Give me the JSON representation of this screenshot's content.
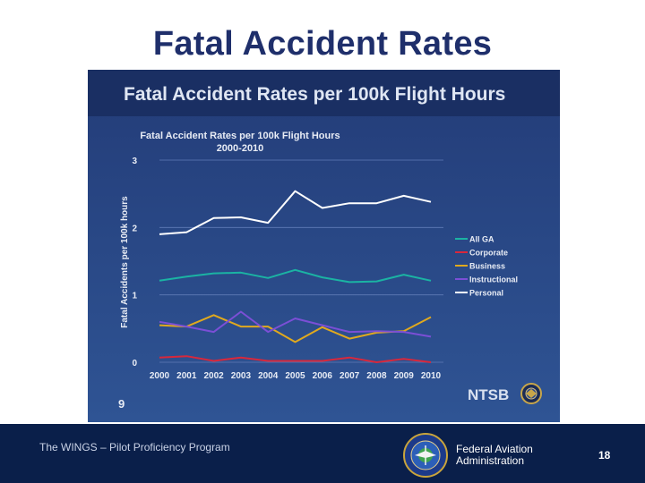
{
  "slide": {
    "title": "Fatal Accident Rates",
    "banner_title": "Fatal Accident Rates per 100k Flight Hours",
    "panel_slide_number": "9",
    "ntsb_label": "NTSB"
  },
  "footer": {
    "program": "The WINGS – Pilot Proficiency Program",
    "agency_line1": "Federal Aviation",
    "agency_line2": "Administration",
    "page_number": "18",
    "seal_text": "FEDERAL AVIATION ADMINISTRATION"
  },
  "colors": {
    "background_top": "#233c78",
    "background_bottom": "#2f5494",
    "banner": "#1a2f63",
    "banner_text": "#dfe6f3",
    "all_ga": "#1bb3a3",
    "corporate": "#d8283c",
    "business": "#e0a91e",
    "instructional": "#7b4fd6",
    "personal": "#ffffff"
  },
  "chart_data": {
    "type": "line",
    "title": "Fatal Accident  Rates per 100k Flight Hours",
    "subtitle": "2000-2010",
    "xlabel": "",
    "ylabel": "Fatal Accidents per 100k hours",
    "ylim": [
      0,
      3
    ],
    "yticks": [
      "0",
      "1",
      "2",
      "3"
    ],
    "categories": [
      "2000",
      "2001",
      "2002",
      "2003",
      "2004",
      "2005",
      "2006",
      "2007",
      "2008",
      "2009",
      "2010"
    ],
    "grid": true,
    "legend_position": "right",
    "series": [
      {
        "name": "All GA",
        "color_key": "all_ga",
        "values": [
          1.21,
          1.27,
          1.32,
          1.33,
          1.25,
          1.37,
          1.26,
          1.19,
          1.2,
          1.3,
          1.21
        ]
      },
      {
        "name": "Corporate",
        "color_key": "corporate",
        "values": [
          0.07,
          0.09,
          0.02,
          0.07,
          0.02,
          0.02,
          0.02,
          0.07,
          0.0,
          0.05,
          0.0
        ]
      },
      {
        "name": "Business",
        "color_key": "business",
        "values": [
          0.55,
          0.53,
          0.7,
          0.53,
          0.53,
          0.3,
          0.52,
          0.35,
          0.44,
          0.46,
          0.67
        ]
      },
      {
        "name": "Instructional",
        "color_key": "instructional",
        "values": [
          0.6,
          0.53,
          0.45,
          0.75,
          0.45,
          0.65,
          0.55,
          0.45,
          0.46,
          0.45,
          0.38
        ]
      },
      {
        "name": "Personal",
        "color_key": "personal",
        "values": [
          1.9,
          1.93,
          2.14,
          2.15,
          2.07,
          2.54,
          2.29,
          2.36,
          2.36,
          2.47,
          2.38
        ]
      }
    ]
  }
}
